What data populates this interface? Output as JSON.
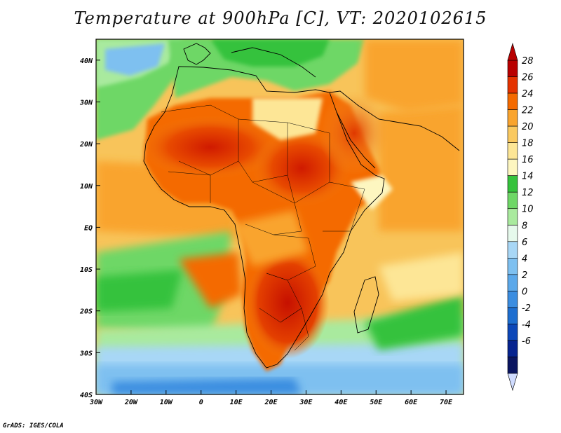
{
  "title": "Temperature at 900hPa [C], VT: 2020102615",
  "credit": "GrADS: IGES/COLA",
  "map": {
    "projection": "lat-lon",
    "lon_range": [
      -30,
      75
    ],
    "lat_range": [
      -40,
      45
    ],
    "lon_ticks": [
      {
        "lon": -30,
        "label": "30W"
      },
      {
        "lon": -20,
        "label": "20W"
      },
      {
        "lon": -10,
        "label": "10W"
      },
      {
        "lon": 0,
        "label": "0"
      },
      {
        "lon": 10,
        "label": "10E"
      },
      {
        "lon": 20,
        "label": "20E"
      },
      {
        "lon": 30,
        "label": "30E"
      },
      {
        "lon": 40,
        "label": "40E"
      },
      {
        "lon": 50,
        "label": "50E"
      },
      {
        "lon": 60,
        "label": "60E"
      },
      {
        "lon": 70,
        "label": "70E"
      }
    ],
    "lat_ticks": [
      {
        "lat": 40,
        "label": "40N"
      },
      {
        "lat": 30,
        "label": "30N"
      },
      {
        "lat": 20,
        "label": "20N"
      },
      {
        "lat": 10,
        "label": "10N"
      },
      {
        "lat": 0,
        "label": "EQ"
      },
      {
        "lat": -10,
        "label": "10S"
      },
      {
        "lat": -20,
        "label": "20S"
      },
      {
        "lat": -30,
        "label": "30S"
      },
      {
        "lat": -40,
        "label": "40S"
      }
    ]
  },
  "colorbar": {
    "levels": [
      "28",
      "26",
      "24",
      "22",
      "20",
      "18",
      "16",
      "14",
      "12",
      "10",
      "8",
      "6",
      "4",
      "2",
      "0",
      "-2",
      "-4",
      "-6"
    ],
    "colors": [
      "#b80000",
      "#e43200",
      "#f46a00",
      "#f9a42e",
      "#fac960",
      "#fde696",
      "#fdf6c0",
      "#35c23c",
      "#6ed766",
      "#a9ea9e",
      "#e6f9ec",
      "#a8d7f6",
      "#7ec0f0",
      "#5ba8ea",
      "#3b8de0",
      "#1d6ed0",
      "#0c47b8",
      "#06238f",
      "#0a1560"
    ],
    "over_color": "#b80000",
    "under_color": "#d0dcff"
  }
}
